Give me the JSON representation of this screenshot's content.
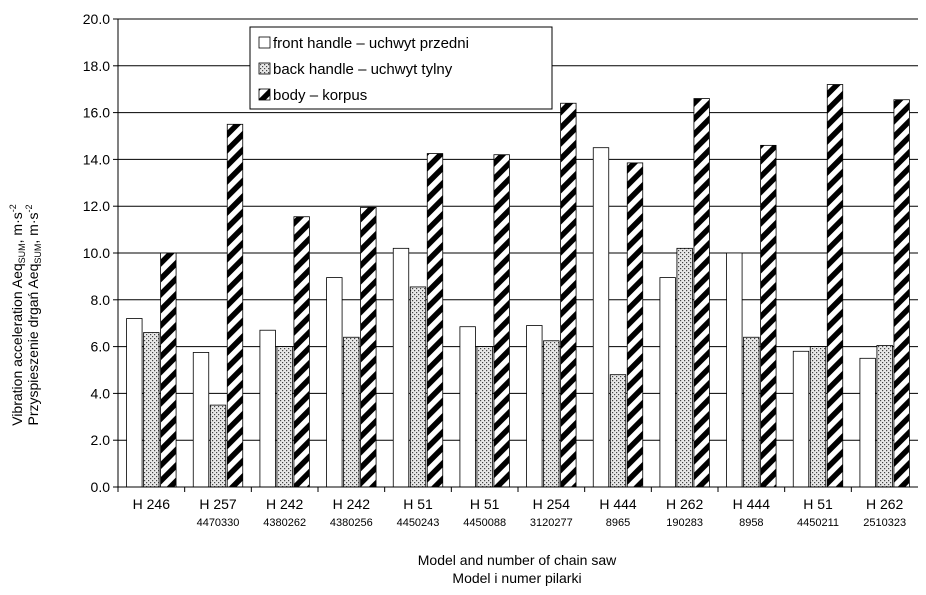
{
  "chart_data": {
    "type": "bar",
    "categories": [
      {
        "model": "H 246",
        "number": ""
      },
      {
        "model": "H 257",
        "number": "4470330"
      },
      {
        "model": "H 242",
        "number": "4380262"
      },
      {
        "model": "H 242",
        "number": "4380256"
      },
      {
        "model": "H 51",
        "number": "4450243"
      },
      {
        "model": "H 51",
        "number": "4450088"
      },
      {
        "model": "H 254",
        "number": "3120277"
      },
      {
        "model": "H 444",
        "number": "8965"
      },
      {
        "model": "H 262",
        "number": "190283"
      },
      {
        "model": "H 444",
        "number": "8958"
      },
      {
        "model": "H 51",
        "number": "4450211"
      },
      {
        "model": "H 262",
        "number": "2510323"
      }
    ],
    "series": [
      {
        "name": "front handle – uchwyt przedni",
        "pattern": "white",
        "values": [
          7.2,
          5.75,
          6.7,
          8.95,
          10.2,
          6.85,
          6.9,
          14.5,
          8.95,
          10.0,
          5.8,
          5.5
        ]
      },
      {
        "name": "back handle – uchwyt tylny",
        "pattern": "dots",
        "values": [
          6.6,
          3.5,
          6.0,
          6.4,
          8.55,
          6.0,
          6.25,
          4.8,
          10.2,
          6.4,
          6.0,
          6.05
        ]
      },
      {
        "name": "body – korpus",
        "pattern": "diagonal-stripes",
        "values": [
          10.0,
          15.5,
          11.55,
          11.95,
          14.25,
          14.2,
          16.4,
          13.85,
          16.6,
          14.6,
          17.2,
          16.55
        ]
      }
    ],
    "ylim": [
      0,
      20
    ],
    "yticks": [
      "0.0",
      "2.0",
      "4.0",
      "6.0",
      "8.0",
      "10.0",
      "12.0",
      "14.0",
      "16.0",
      "18.0",
      "20.0"
    ],
    "ylabel": {
      "line1_prefix": "Vibration acceleration Aeq",
      "line1_sub": "SUM",
      "line1_suffix": ", m·s",
      "line2_prefix": "Przyspieszenie drgań Aeq",
      "line2_sub": "SUM",
      "line2_suffix": ", m·s",
      "exponent": "-2"
    },
    "xlabel": {
      "line1": "Model and number of chain saw",
      "line2": "Model i numer pilarki"
    },
    "grid": true,
    "legend_position": "top-center"
  },
  "colors": {
    "bar_outline": "#000000",
    "grid": "#000000",
    "background": "#ffffff"
  }
}
